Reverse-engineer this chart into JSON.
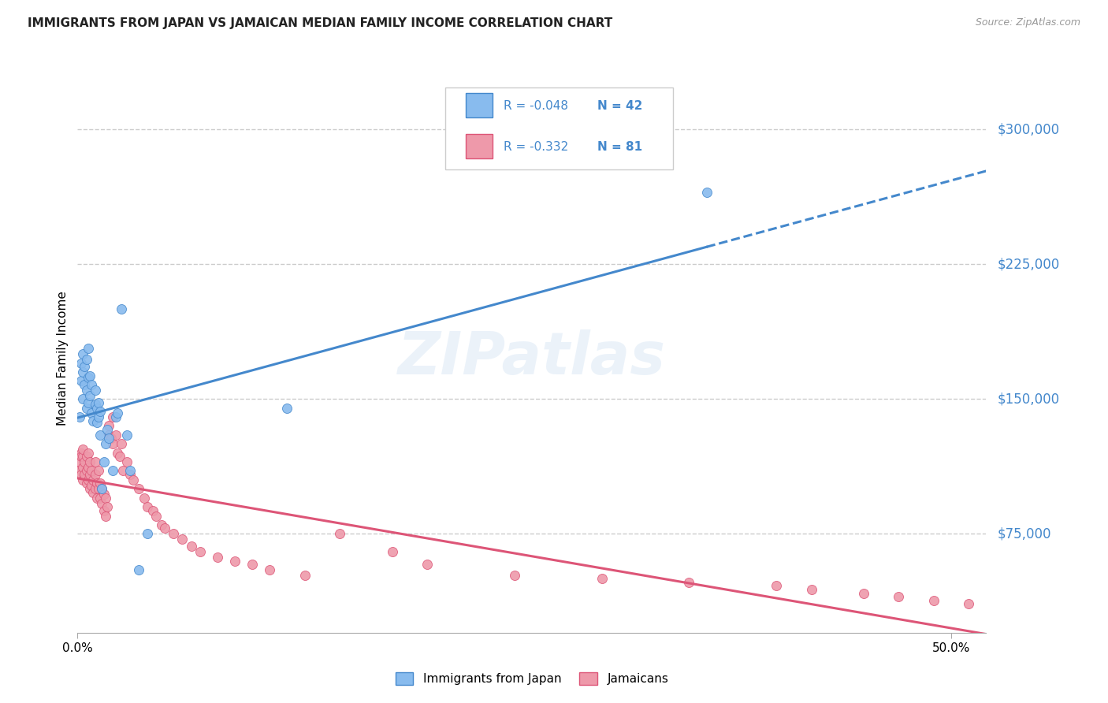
{
  "title": "IMMIGRANTS FROM JAPAN VS JAMAICAN MEDIAN FAMILY INCOME CORRELATION CHART",
  "source": "Source: ZipAtlas.com",
  "ylabel": "Median Family Income",
  "y_tick_labels": [
    "$300,000",
    "$225,000",
    "$150,000",
    "$75,000"
  ],
  "y_tick_values": [
    300000,
    225000,
    150000,
    75000
  ],
  "ylim": [
    20000,
    325000
  ],
  "xlim": [
    0.0,
    0.52
  ],
  "legend_labels": [
    "Immigrants from Japan",
    "Jamaicans"
  ],
  "watermark": "ZIPatlas",
  "japan_scatter_x": [
    0.001,
    0.002,
    0.002,
    0.003,
    0.003,
    0.003,
    0.004,
    0.004,
    0.005,
    0.005,
    0.005,
    0.006,
    0.006,
    0.006,
    0.007,
    0.007,
    0.008,
    0.008,
    0.009,
    0.01,
    0.01,
    0.011,
    0.011,
    0.012,
    0.012,
    0.013,
    0.013,
    0.014,
    0.015,
    0.016,
    0.017,
    0.018,
    0.02,
    0.022,
    0.023,
    0.025,
    0.028,
    0.03,
    0.035,
    0.04,
    0.36,
    0.12
  ],
  "japan_scatter_y": [
    140000,
    160000,
    170000,
    150000,
    165000,
    175000,
    158000,
    168000,
    145000,
    155000,
    172000,
    148000,
    162000,
    178000,
    152000,
    163000,
    142000,
    158000,
    138000,
    147000,
    155000,
    145000,
    137000,
    140000,
    148000,
    130000,
    143000,
    100000,
    115000,
    125000,
    133000,
    128000,
    110000,
    140000,
    142000,
    200000,
    130000,
    110000,
    55000,
    75000,
    265000,
    145000
  ],
  "jamaica_scatter_x": [
    0.001,
    0.001,
    0.002,
    0.002,
    0.002,
    0.003,
    0.003,
    0.003,
    0.003,
    0.004,
    0.004,
    0.005,
    0.005,
    0.005,
    0.006,
    0.006,
    0.006,
    0.007,
    0.007,
    0.007,
    0.008,
    0.008,
    0.009,
    0.009,
    0.01,
    0.01,
    0.01,
    0.011,
    0.011,
    0.012,
    0.012,
    0.013,
    0.013,
    0.014,
    0.014,
    0.015,
    0.015,
    0.016,
    0.016,
    0.017,
    0.018,
    0.018,
    0.019,
    0.02,
    0.02,
    0.022,
    0.023,
    0.024,
    0.025,
    0.026,
    0.028,
    0.03,
    0.032,
    0.035,
    0.038,
    0.04,
    0.043,
    0.045,
    0.048,
    0.05,
    0.055,
    0.06,
    0.065,
    0.07,
    0.08,
    0.09,
    0.1,
    0.11,
    0.13,
    0.15,
    0.18,
    0.2,
    0.25,
    0.3,
    0.35,
    0.4,
    0.42,
    0.45,
    0.47,
    0.49,
    0.51
  ],
  "jamaica_scatter_y": [
    115000,
    110000,
    120000,
    108000,
    118000,
    112000,
    105000,
    118000,
    122000,
    108000,
    115000,
    110000,
    103000,
    118000,
    105000,
    112000,
    120000,
    100000,
    108000,
    115000,
    102000,
    110000,
    98000,
    105000,
    100000,
    108000,
    115000,
    95000,
    103000,
    100000,
    110000,
    95000,
    103000,
    92000,
    100000,
    88000,
    97000,
    85000,
    95000,
    90000,
    135000,
    130000,
    128000,
    140000,
    125000,
    130000,
    120000,
    118000,
    125000,
    110000,
    115000,
    108000,
    105000,
    100000,
    95000,
    90000,
    88000,
    85000,
    80000,
    78000,
    75000,
    72000,
    68000,
    65000,
    62000,
    60000,
    58000,
    55000,
    52000,
    75000,
    65000,
    58000,
    52000,
    50000,
    48000,
    46000,
    44000,
    42000,
    40000,
    38000,
    36000
  ],
  "japan_line_color": "#4488cc",
  "japan_scatter_color": "#88bbee",
  "jamaica_line_color": "#dd5577",
  "jamaica_scatter_color": "#ee99aa",
  "grid_color": "#cccccc",
  "tick_color": "#4488cc",
  "background_color": "#ffffff",
  "r_japan": "R = -0.048",
  "n_japan": "N = 42",
  "r_jamaica": "R = -0.332",
  "n_jamaica": "N = 81"
}
